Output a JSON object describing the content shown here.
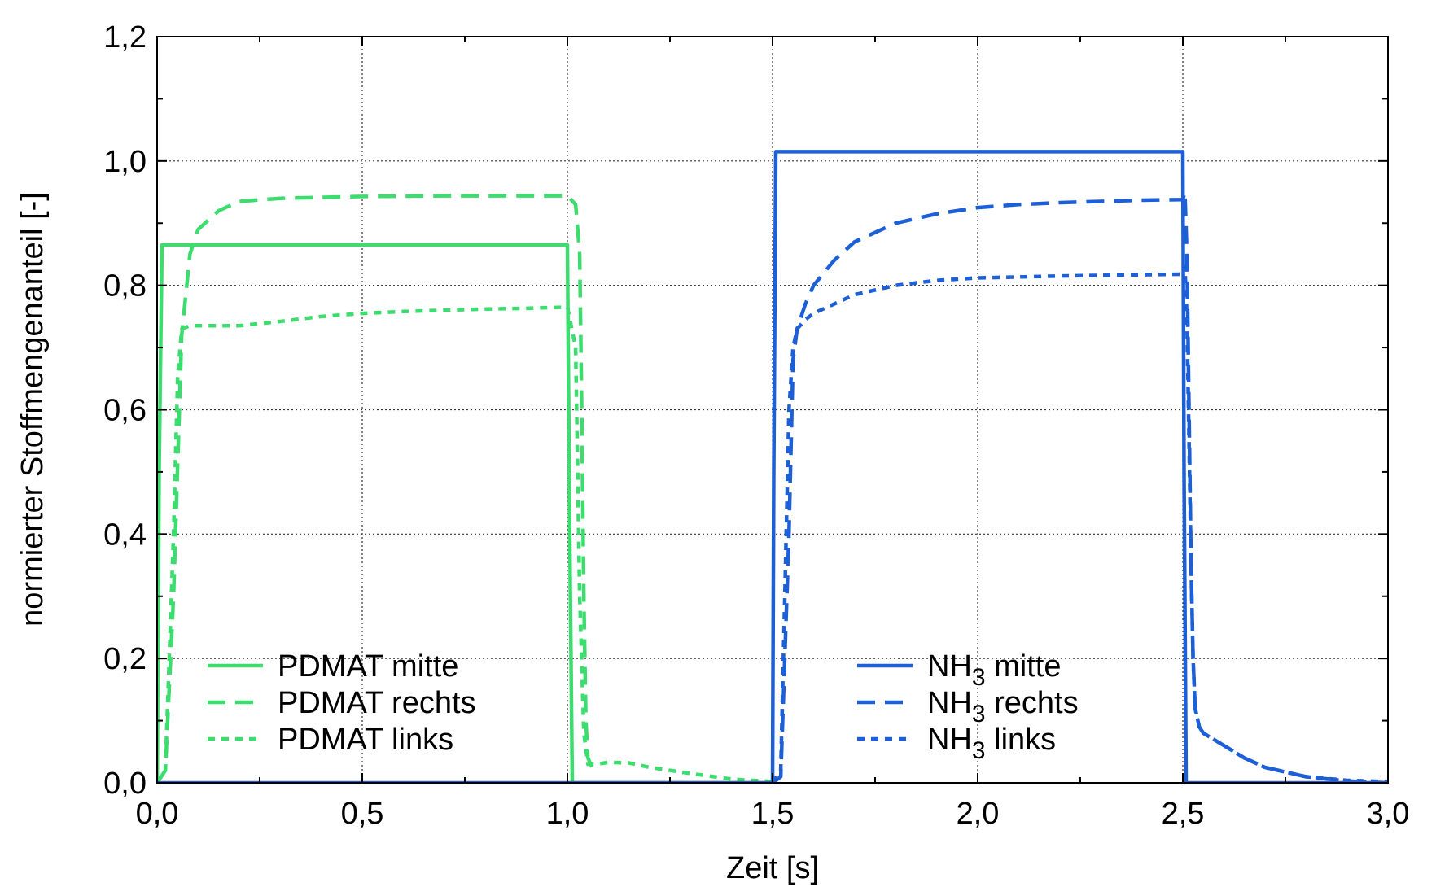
{
  "chart_data": {
    "type": "line",
    "xlabel": "Zeit [s]",
    "ylabel": "normierter Stoffmengenanteil [-]",
    "xlim": [
      0.0,
      3.0
    ],
    "ylim": [
      0.0,
      1.2
    ],
    "xticks": [
      0.0,
      0.5,
      1.0,
      1.5,
      2.0,
      2.5,
      3.0
    ],
    "yticks": [
      0.0,
      0.2,
      0.4,
      0.6,
      0.8,
      1.0,
      1.2
    ],
    "xtick_labels": [
      "0,0",
      "0,5",
      "1,0",
      "1,5",
      "2,0",
      "2,5",
      "3,0"
    ],
    "ytick_labels": [
      "0,0",
      "0,2",
      "0,4",
      "0,6",
      "0,8",
      "1,0",
      "1,2"
    ],
    "grid": true,
    "legends": [
      {
        "placement": "bottom-left",
        "entries": [
          0,
          1,
          2
        ]
      },
      {
        "placement": "bottom-center-right",
        "entries": [
          3,
          4,
          5
        ]
      }
    ],
    "series": [
      {
        "name": "PDMAT mitte",
        "label_main": "PDMAT",
        "label_sub": "",
        "label_rest": " mitte",
        "color": "#3cdd6e",
        "style": "solid",
        "x": [
          0.0,
          0.005,
          0.012,
          1.0,
          1.005,
          1.012,
          1.5
        ],
        "y": [
          0.0,
          0.5,
          0.865,
          0.865,
          0.45,
          0.0,
          0.0
        ]
      },
      {
        "name": "PDMAT rechts",
        "label_main": "PDMAT",
        "label_sub": "",
        "label_rest": " rechts",
        "color": "#3cdd6e",
        "style": "dashed",
        "x": [
          0.0,
          0.02,
          0.04,
          0.06,
          0.08,
          0.1,
          0.15,
          0.2,
          0.3,
          0.5,
          0.7,
          0.9,
          1.0,
          1.02,
          1.03,
          1.035,
          1.04,
          1.045,
          1.05,
          1.06,
          1.07,
          1.08
        ],
        "y": [
          0.0,
          0.02,
          0.3,
          0.72,
          0.85,
          0.89,
          0.92,
          0.935,
          0.94,
          0.943,
          0.944,
          0.944,
          0.944,
          0.93,
          0.85,
          0.6,
          0.3,
          0.1,
          0.04,
          0.025,
          0.03,
          0.03
        ]
      },
      {
        "name": "PDMAT links",
        "label_main": "PDMAT",
        "label_sub": "",
        "label_rest": " links",
        "color": "#3cdd6e",
        "style": "dotted",
        "x": [
          0.0,
          0.02,
          0.04,
          0.05,
          0.06,
          0.08,
          0.15,
          0.2,
          0.3,
          0.4,
          0.5,
          0.6,
          0.7,
          0.8,
          0.9,
          1.0,
          1.02,
          1.025,
          1.03,
          1.04,
          1.05,
          1.07,
          1.1,
          1.15,
          1.2,
          1.3,
          1.4,
          1.5
        ],
        "y": [
          0.0,
          0.02,
          0.4,
          0.65,
          0.73,
          0.735,
          0.735,
          0.735,
          0.742,
          0.75,
          0.755,
          0.758,
          0.76,
          0.762,
          0.763,
          0.765,
          0.7,
          0.5,
          0.3,
          0.08,
          0.03,
          0.03,
          0.033,
          0.032,
          0.025,
          0.015,
          0.006,
          0.002
        ]
      },
      {
        "name": "NH3 mitte",
        "label_main": "NH",
        "label_sub": "3",
        "label_rest": " mitte",
        "color": "#1d5fd6",
        "style": "solid",
        "x": [
          0.0,
          1.5,
          1.503,
          1.508,
          2.5,
          2.503,
          2.508,
          3.0
        ],
        "y": [
          0.0,
          0.0,
          0.5,
          1.015,
          1.015,
          0.5,
          0.0,
          0.0
        ]
      },
      {
        "name": "NH3 rechts",
        "label_main": "NH",
        "label_sub": "3",
        "label_rest": " rechts",
        "color": "#1d5fd6",
        "style": "dashed",
        "x": [
          1.5,
          1.52,
          1.54,
          1.55,
          1.56,
          1.58,
          1.6,
          1.65,
          1.7,
          1.8,
          1.9,
          2.0,
          2.1,
          2.2,
          2.3,
          2.4,
          2.5,
          2.505,
          2.51,
          2.515,
          2.52,
          2.525,
          2.53,
          2.54,
          2.55,
          2.6,
          2.65,
          2.7,
          2.8,
          2.9,
          3.0
        ],
        "y": [
          0.0,
          0.01,
          0.4,
          0.68,
          0.73,
          0.77,
          0.8,
          0.84,
          0.87,
          0.9,
          0.915,
          0.925,
          0.93,
          0.933,
          0.935,
          0.937,
          0.938,
          0.95,
          0.85,
          0.6,
          0.35,
          0.2,
          0.12,
          0.09,
          0.08,
          0.06,
          0.04,
          0.025,
          0.01,
          0.003,
          0.0
        ]
      },
      {
        "name": "NH3 links",
        "label_main": "NH",
        "label_sub": "3",
        "label_rest": " links",
        "color": "#1d5fd6",
        "style": "dotted",
        "x": [
          1.5,
          1.52,
          1.53,
          1.54,
          1.55,
          1.56,
          1.58,
          1.6,
          1.7,
          1.8,
          1.9,
          2.0,
          2.2,
          2.4,
          2.5,
          2.505,
          2.51,
          2.515,
          2.52,
          2.525,
          2.53,
          2.54,
          2.55,
          2.6,
          2.65,
          2.7,
          2.8,
          2.9,
          3.0
        ],
        "y": [
          0.0,
          0.02,
          0.3,
          0.6,
          0.7,
          0.73,
          0.745,
          0.755,
          0.785,
          0.8,
          0.808,
          0.812,
          0.815,
          0.817,
          0.818,
          0.83,
          0.75,
          0.55,
          0.35,
          0.2,
          0.12,
          0.09,
          0.08,
          0.06,
          0.04,
          0.025,
          0.01,
          0.004,
          0.002
        ]
      }
    ]
  }
}
